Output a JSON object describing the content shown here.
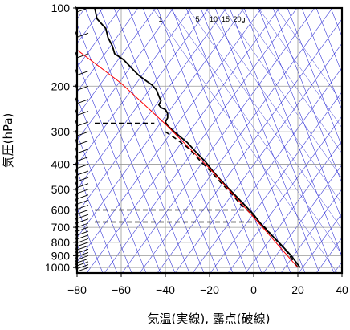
{
  "chart_data": {
    "type": "line",
    "title": "",
    "xlabel": "気温(実線), 露点(破線)",
    "ylabel": "気圧(hPa)",
    "x_ticks": [
      "−80",
      "−60",
      "−40",
      "−20",
      "0",
      "20",
      "40"
    ],
    "x_tick_values": [
      -80,
      -60,
      -40,
      -20,
      0,
      20,
      40
    ],
    "xlim": [
      -80,
      40
    ],
    "y_ticks": [
      "100",
      "200",
      "300",
      "400",
      "500",
      "600",
      "700",
      "800",
      "900",
      "1000"
    ],
    "y_tick_values": [
      100,
      200,
      300,
      400,
      500,
      600,
      700,
      800,
      900,
      1000
    ],
    "ylim": [
      1050,
      100
    ],
    "y_scale": "log",
    "mixing_ratio_labels": [
      "1",
      "5",
      "10",
      "15",
      "20g"
    ],
    "series": [
      {
        "style": "solid",
        "color": "#000000",
        "points": [
          [
            -72,
            100
          ],
          [
            -71,
            110
          ],
          [
            -67,
            120
          ],
          [
            -66,
            130
          ],
          [
            -64,
            140
          ],
          [
            -63,
            150
          ],
          [
            -59,
            158
          ],
          [
            -56,
            168
          ],
          [
            -54,
            175
          ],
          [
            -52,
            182
          ],
          [
            -49,
            190
          ],
          [
            -46,
            198
          ],
          [
            -44,
            207
          ],
          [
            -43,
            218
          ],
          [
            -42,
            228
          ],
          [
            -43,
            236
          ],
          [
            -42,
            242
          ],
          [
            -40,
            246
          ],
          [
            -39,
            255
          ],
          [
            -39,
            265
          ],
          [
            -40,
            275
          ],
          [
            -39,
            284
          ],
          [
            -35,
            305
          ],
          [
            -30,
            330
          ],
          [
            -26,
            360
          ],
          [
            -22,
            390
          ],
          [
            -19,
            420
          ],
          [
            -16,
            450
          ],
          [
            -12,
            490
          ],
          [
            -8,
            530
          ],
          [
            -4,
            575
          ],
          [
            0,
            625
          ],
          [
            3,
            675
          ],
          [
            7,
            735
          ],
          [
            12,
            810
          ],
          [
            17,
            900
          ],
          [
            21,
            1000
          ]
        ]
      },
      {
        "style": "dashed",
        "color": "#000000",
        "points": [
          [
            -40,
            300
          ],
          [
            -35,
            320
          ],
          [
            -29,
            350
          ],
          [
            -24,
            390
          ],
          [
            -19,
            430
          ],
          [
            -15,
            470
          ],
          [
            -10,
            520
          ],
          [
            -6,
            570
          ],
          [
            -3,
            600
          ],
          [
            1,
            650
          ],
          [
            5,
            700
          ],
          [
            10,
            780
          ],
          [
            15,
            870
          ],
          [
            20,
            1000
          ]
        ]
      },
      {
        "style": "dashed",
        "color": "#000000",
        "points": [
          [
            -72,
            278
          ],
          [
            -45,
            278
          ]
        ]
      },
      {
        "style": "dashed",
        "color": "#000000",
        "points": [
          [
            -72,
            600
          ],
          [
            -3,
            600
          ]
        ]
      },
      {
        "style": "dashed",
        "color": "#000000",
        "points": [
          [
            -72,
            668
          ],
          [
            1,
            668
          ]
        ]
      },
      {
        "style": "solid",
        "color": "#ff0000",
        "points": [
          [
            -80,
            145
          ],
          [
            -60,
            195
          ],
          [
            -40,
            280
          ],
          [
            -20,
            415
          ],
          [
            0,
            640
          ],
          [
            20,
            1000
          ]
        ]
      }
    ],
    "wind_barbs": true
  },
  "colors": {
    "blue_lines": "#3a3ad8",
    "red_line": "#ff0000",
    "grid": "#999999",
    "frame": "#000000"
  }
}
